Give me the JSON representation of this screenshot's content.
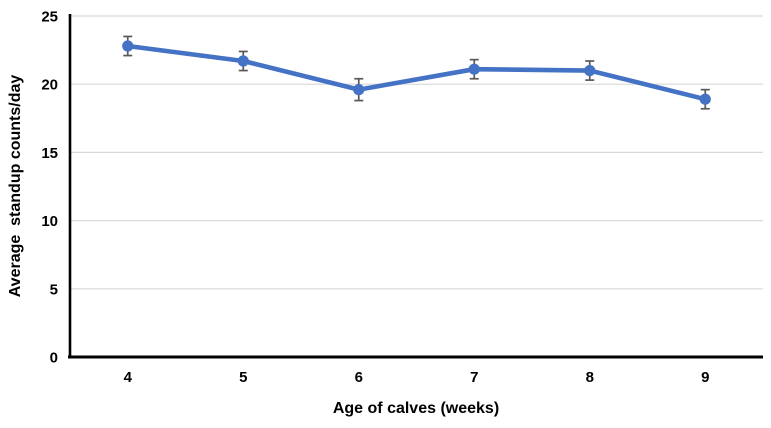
{
  "chart_data": {
    "type": "line",
    "title": "",
    "categories": [
      "4",
      "5",
      "6",
      "7",
      "8",
      "9"
    ],
    "series": [
      {
        "name": "Average standup counts/day",
        "values": [
          22.8,
          21.7,
          19.6,
          21.1,
          21.0,
          18.9
        ],
        "errors": [
          0.7,
          0.7,
          0.8,
          0.7,
          0.7,
          0.7
        ]
      }
    ],
    "xlabel": "Age of calves (weeks)",
    "ylabel": "Average  standup counts/day",
    "ylim": [
      0,
      25
    ],
    "yticks": [
      0,
      5,
      10,
      15,
      20,
      25
    ],
    "grid": true,
    "legend_position": "none",
    "marker": "circle"
  },
  "colors": {
    "line": "#4472C4",
    "marker": "#4472C4",
    "error_bar": "#595959",
    "gridline": "#D9D9D9",
    "axis": "#000000",
    "text": "#000000",
    "background": "#FFFFFF"
  }
}
